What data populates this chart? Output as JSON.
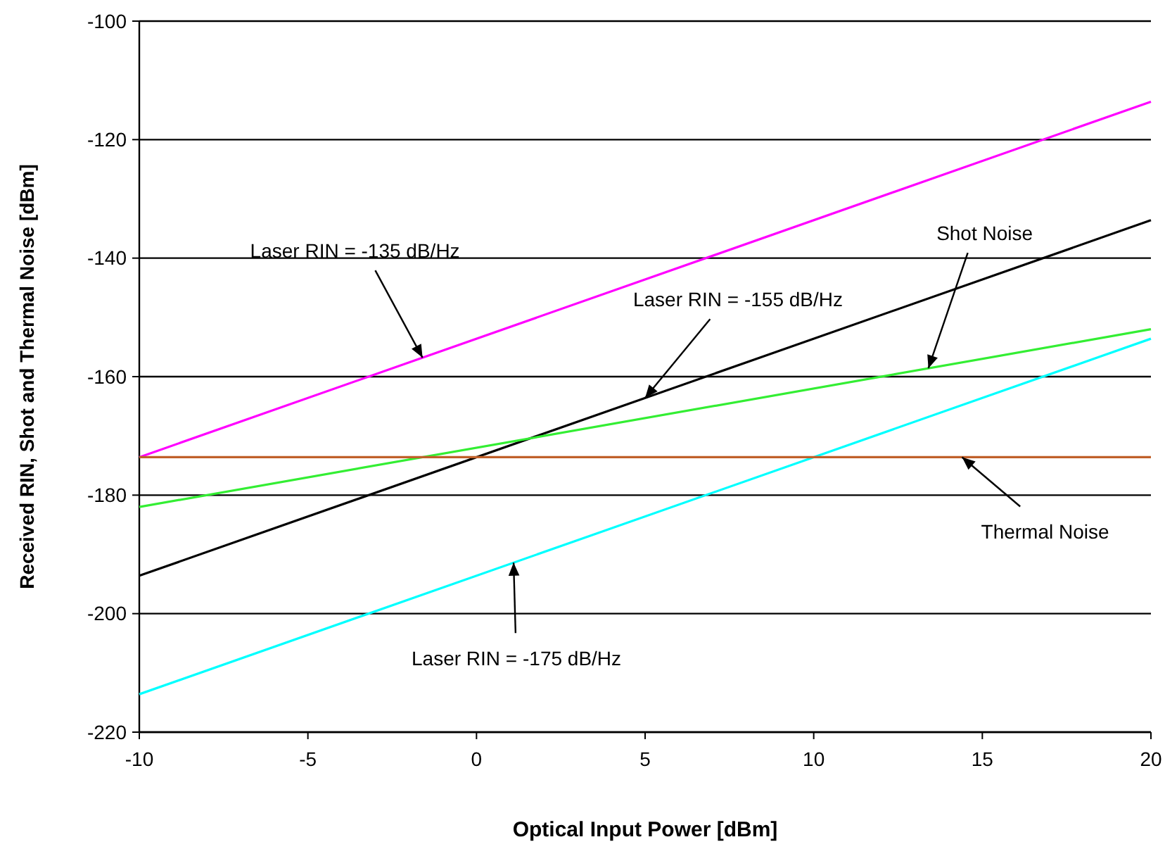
{
  "chart_data": {
    "type": "line",
    "xlabel": "Optical Input Power [dBm]",
    "ylabel": "Received RIN, Shot and Thermal Noise [dBm]",
    "xlim": [
      -10,
      20
    ],
    "xticks": [
      -10,
      -5,
      0,
      5,
      10,
      15,
      20
    ],
    "ylim": [
      -220,
      -100
    ],
    "yticks": [
      -220,
      -200,
      -180,
      -160,
      -140,
      -120,
      -100
    ],
    "grid": "y",
    "marker": "none",
    "line_style": "solid",
    "x": [
      -10,
      20
    ],
    "series": [
      {
        "color": "#ff00ff",
        "values": [
          -173.6,
          -113.6
        ]
      },
      {
        "color": "#000000",
        "values": [
          -193.6,
          -133.6
        ]
      },
      {
        "color": "#33ee33",
        "values": [
          -182,
          -152
        ]
      },
      {
        "color": "#00ffff",
        "values": [
          -213.6,
          -153.6
        ]
      },
      {
        "color": "#c0602a",
        "values": [
          -173.6,
          -173.6
        ]
      }
    ],
    "annotations": [
      {
        "text": "Laser RIN = -135 dB/Hz",
        "x": -1.6,
        "y": -156.8
      },
      {
        "text": "Laser RIN = -155 dB/Hz",
        "x": 5,
        "y": -163.6
      },
      {
        "text": "Shot Noise",
        "x": 13.4,
        "y": -158.6
      },
      {
        "text": "Thermal Noise",
        "x": 14.4,
        "y": -173.6
      },
      {
        "text": "Laser RIN = -175 dB/Hz",
        "x": 1.1,
        "y": -191.4
      }
    ]
  }
}
